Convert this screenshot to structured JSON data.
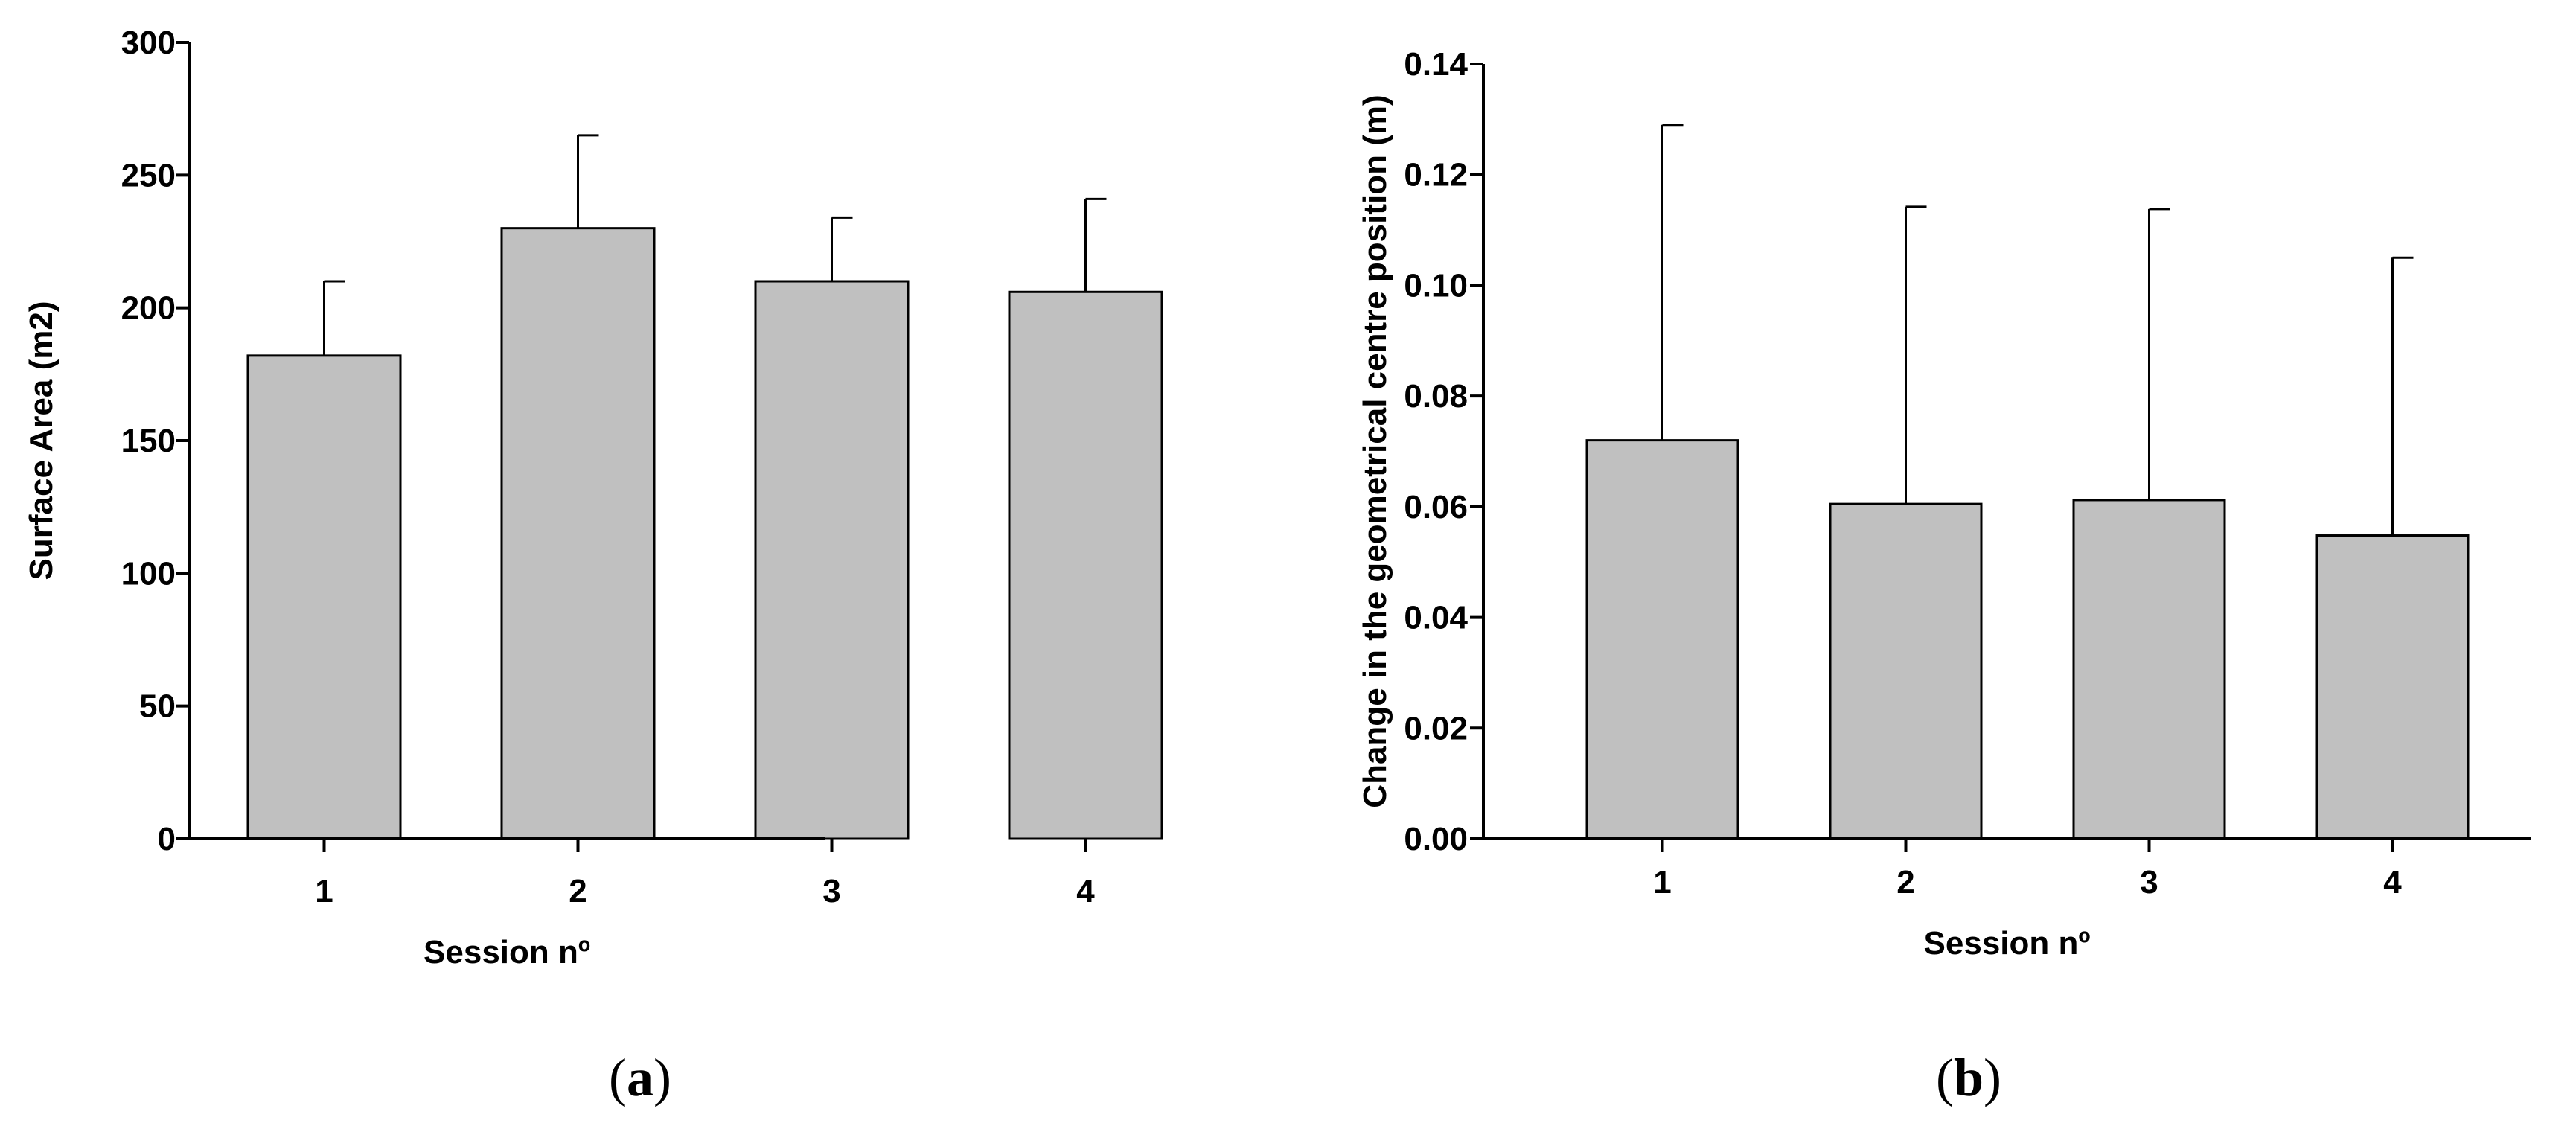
{
  "chart_data": [
    {
      "type": "bar",
      "panel": "a",
      "categories": [
        "1",
        "2",
        "3",
        "4"
      ],
      "values": [
        182,
        230,
        210,
        206
      ],
      "errors": [
        28,
        35,
        24,
        35
      ],
      "xlabel": "Session nº",
      "ylabel": "Surface Area (m2)",
      "ylim": [
        0,
        300
      ],
      "yticks": [
        "0",
        "50",
        "100",
        "150",
        "200",
        "250",
        "300"
      ],
      "ytick_values": [
        0,
        50,
        100,
        150,
        200,
        250,
        300
      ],
      "bar_color": "#c0c0c0",
      "grid": false
    },
    {
      "type": "bar",
      "panel": "b",
      "categories": [
        "1",
        "2",
        "3",
        "4"
      ],
      "values": [
        0.072,
        0.0605,
        0.0612,
        0.0548
      ],
      "errors": [
        0.057,
        0.0537,
        0.0526,
        0.0502
      ],
      "xlabel": "Session nº",
      "ylabel": "Change in the geometrical centre position (m)",
      "ylim": [
        0,
        0.14
      ],
      "yticks": [
        "0.00",
        "0.02",
        "0.04",
        "0.06",
        "0.08",
        "0.10",
        "0.12",
        "0.14"
      ],
      "ytick_values": [
        0,
        0.02,
        0.04,
        0.06,
        0.08,
        0.1,
        0.12,
        0.14
      ],
      "bar_color": "#c0c0c0",
      "grid": false
    }
  ]
}
